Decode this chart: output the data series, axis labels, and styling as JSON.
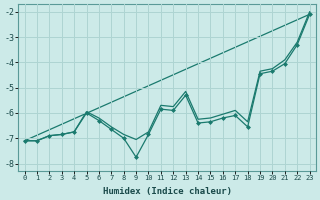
{
  "xlabel": "Humidex (Indice chaleur)",
  "bg_color": "#cceae8",
  "grid_color": "#aed4d2",
  "line_color": "#1a7a6e",
  "x_data": [
    0,
    1,
    2,
    3,
    4,
    5,
    6,
    7,
    8,
    9,
    10,
    11,
    12,
    13,
    14,
    15,
    16,
    17,
    18,
    19,
    20,
    21,
    22,
    23
  ],
  "line1": [
    -7.1,
    -7.1,
    -6.9,
    -6.85,
    -6.75,
    -6.0,
    -6.3,
    -6.65,
    -7.0,
    -7.75,
    -6.85,
    -5.85,
    -5.9,
    -5.3,
    -6.4,
    -6.35,
    -6.2,
    -6.1,
    -6.55,
    -4.45,
    -4.35,
    -4.05,
    -3.3,
    -2.1
  ],
  "line2": [
    -7.1,
    -7.1,
    -6.9,
    -6.85,
    -6.75,
    -5.95,
    -6.2,
    -6.55,
    -6.85,
    -7.05,
    -6.75,
    -5.7,
    -5.75,
    -5.15,
    -6.25,
    -6.2,
    -6.05,
    -5.9,
    -6.35,
    -4.35,
    -4.25,
    -3.9,
    -3.2,
    -2.0
  ],
  "line3_x": [
    0,
    23
  ],
  "line3_y": [
    -7.1,
    -2.1
  ],
  "ylim": [
    -8.3,
    -1.7
  ],
  "xlim": [
    -0.5,
    23.5
  ],
  "yticks": [
    -8,
    -7,
    -6,
    -5,
    -4,
    -3,
    -2
  ],
  "ytick_labels": [
    "-8",
    "-7",
    "-6",
    "-5",
    "-4",
    "-3",
    "-2"
  ]
}
